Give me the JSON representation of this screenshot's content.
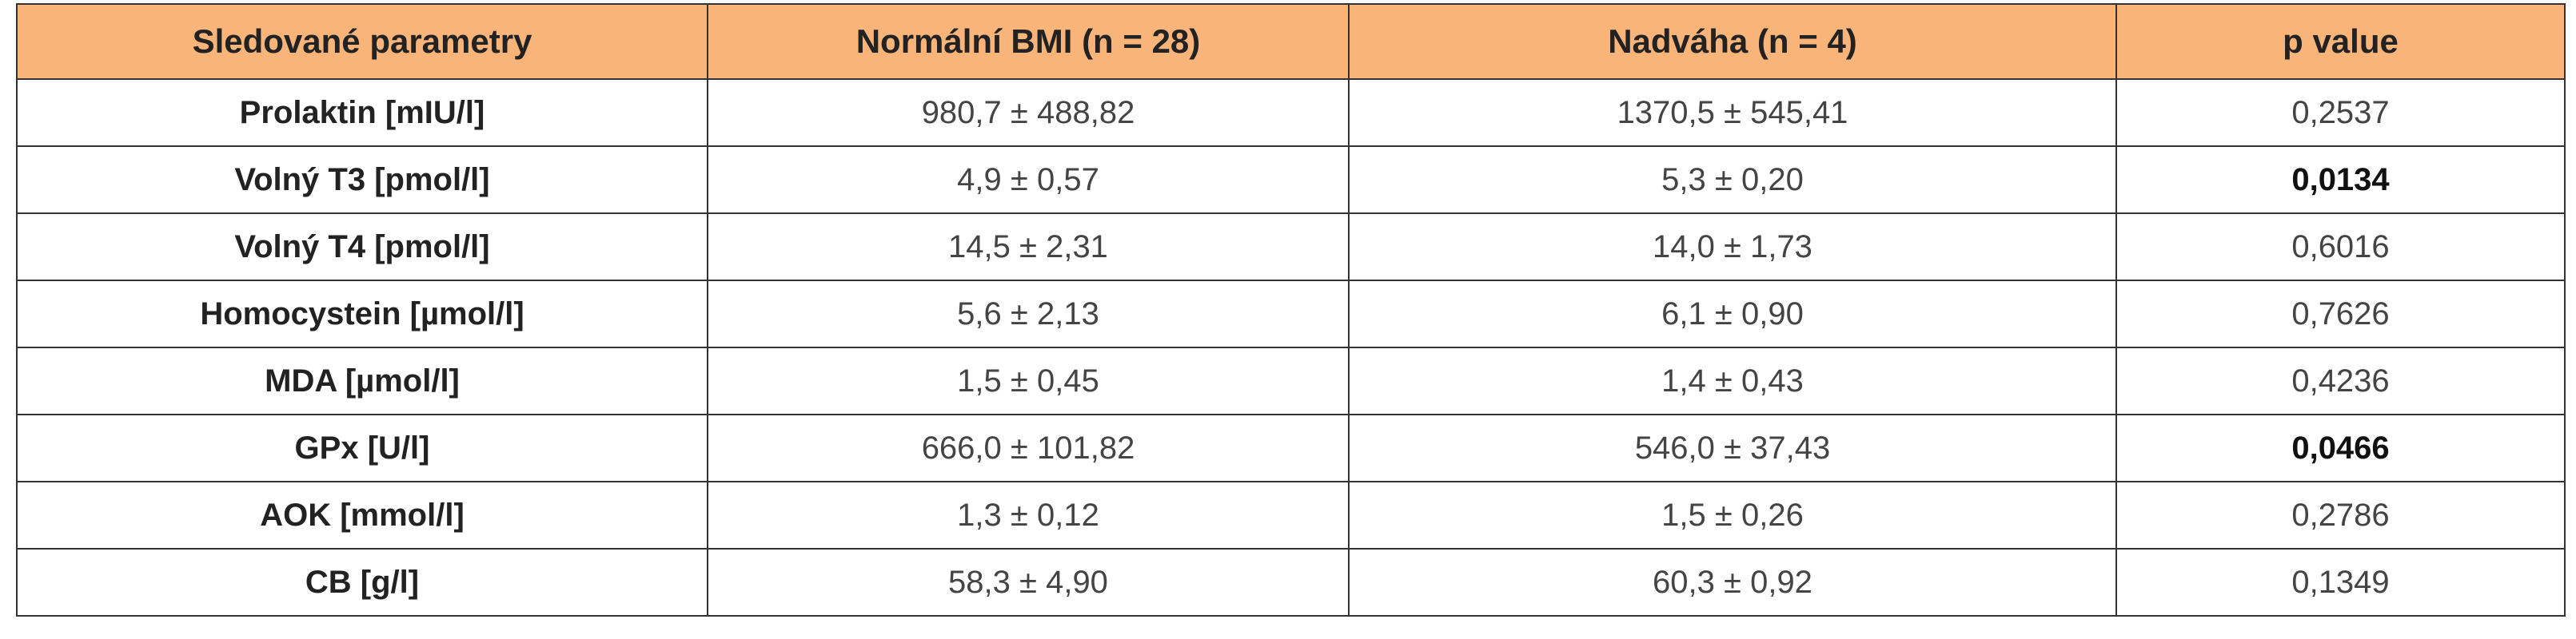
{
  "table": {
    "header": [
      "Sledované parametry",
      "Normální BMI (n = 28)",
      "Nadváha (n = 4)",
      "p value"
    ],
    "rows": [
      [
        "Prolaktin [mIU/l]",
        "980,7 ± 488,82",
        "1370,5 ± 545,41",
        "0,2537"
      ],
      [
        "Volný T3 [pmol/l]",
        "4,9 ± 0,57",
        "5,3 ± 0,20",
        "0,0134"
      ],
      [
        "Volný T4 [pmol/l]",
        "14,5 ± 2,31",
        "14,0 ± 1,73",
        "0,6016"
      ],
      [
        "Homocystein [µmol/l]",
        "5,6 ± 2,13",
        "6,1 ± 0,90",
        "0,7626"
      ],
      [
        "MDA [µmol/l]",
        "1,5 ± 0,45",
        "1,4 ± 0,43",
        "0,4236"
      ],
      [
        "GPx [U/l]",
        "666,0 ± 101,82",
        "546,0 ± 37,43",
        "0,0466"
      ],
      [
        "AOK [mmol/l]",
        "1,3 ± 0,12",
        "1,5 ± 0,26",
        "0,2786"
      ],
      [
        "CB [g/l]",
        "58,3 ± 4,90",
        "60,3 ± 0,92",
        "0,1349"
      ]
    ]
  }
}
